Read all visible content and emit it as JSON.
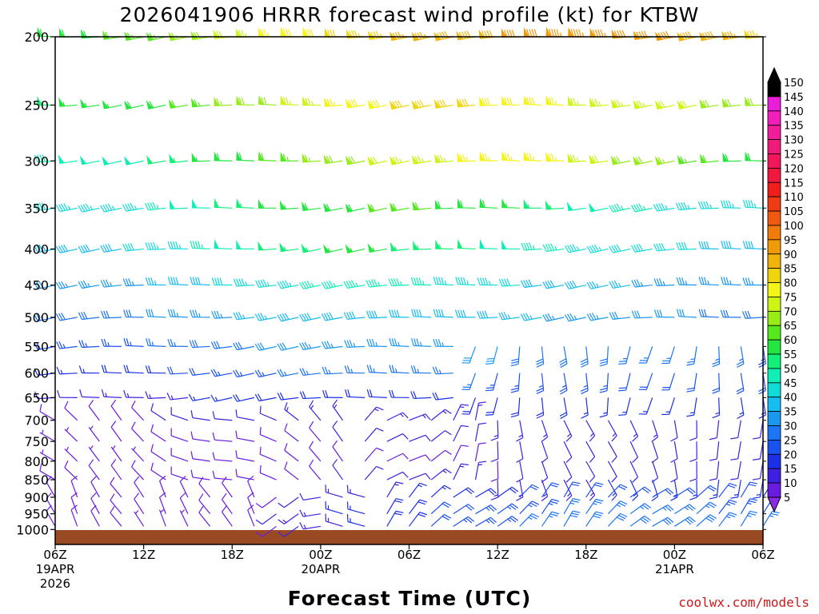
{
  "chart_data": {
    "type": "wind_barb_profile",
    "title": "2026041906 HRRR forecast wind profile (kt) for KTBW",
    "xlabel": "Forecast Time (UTC)",
    "ylabel": "",
    "x_ticks": [
      {
        "lines": [
          "06Z",
          "19APR",
          "2026"
        ]
      },
      {
        "lines": [
          "12Z"
        ]
      },
      {
        "lines": [
          "18Z"
        ]
      },
      {
        "lines": [
          "00Z",
          "20APR"
        ]
      },
      {
        "lines": [
          "06Z"
        ]
      },
      {
        "lines": [
          "12Z"
        ]
      },
      {
        "lines": [
          "18Z"
        ]
      },
      {
        "lines": [
          "00Z",
          "21APR"
        ]
      },
      {
        "lines": [
          "06Z"
        ]
      }
    ],
    "x_range_hours": [
      0,
      48
    ],
    "y_levels": [
      200,
      250,
      300,
      350,
      400,
      450,
      500,
      550,
      600,
      650,
      700,
      750,
      800,
      850,
      900,
      950,
      1000
    ],
    "y_scale": "log-pressure",
    "y_range": [
      200,
      1050
    ],
    "colorbar": {
      "levels": [
        5,
        10,
        15,
        20,
        25,
        30,
        35,
        40,
        45,
        50,
        55,
        60,
        65,
        70,
        75,
        80,
        85,
        90,
        95,
        100,
        105,
        110,
        115,
        120,
        125,
        130,
        135,
        140,
        145,
        150
      ],
      "colors": [
        "#8a2be2",
        "#6a1be0",
        "#4020e0",
        "#1a2fe6",
        "#1a52f0",
        "#1c75f2",
        "#1a98f0",
        "#17bcf0",
        "#12dcd8",
        "#10eeb8",
        "#12f07a",
        "#25e640",
        "#55e81c",
        "#98ec18",
        "#cef416",
        "#f4f416",
        "#f0d40e",
        "#f0b40a",
        "#f09a0a",
        "#f07a0a",
        "#f05a10",
        "#f03c14",
        "#f01e1a",
        "#f0183c",
        "#f0185a",
        "#f01a7a",
        "#f01c9a",
        "#f01eba",
        "#e81ed8",
        "#000000"
      ]
    },
    "wind_kt_by_level": {
      "200": [
        60,
        60,
        63,
        67,
        72,
        76,
        80,
        84,
        86,
        88,
        90,
        92,
        93,
        92,
        91,
        88,
        85
      ],
      "250": [
        55,
        56,
        58,
        62,
        66,
        70,
        75,
        79,
        81,
        82,
        80,
        78,
        75,
        74,
        72,
        70,
        68
      ],
      "300": [
        47,
        48,
        50,
        54,
        58,
        62,
        66,
        70,
        73,
        75,
        77,
        77,
        74,
        70,
        66,
        62,
        58
      ],
      "350": [
        42,
        43,
        45,
        48,
        52,
        56,
        58,
        60,
        61,
        60,
        58,
        55,
        50,
        47,
        45,
        44,
        43
      ],
      "400": [
        37,
        38,
        41,
        44,
        48,
        52,
        55,
        56,
        55,
        53,
        50,
        47,
        44,
        42,
        41,
        40,
        39
      ],
      "450": [
        32,
        33,
        35,
        38,
        41,
        44,
        46,
        47,
        47,
        45,
        43,
        40,
        38,
        36,
        34,
        33,
        33
      ],
      "500": [
        27,
        28,
        30,
        33,
        35,
        37,
        39,
        40,
        40,
        39,
        38,
        36,
        34,
        32,
        31,
        30,
        29
      ],
      "550": [
        22,
        23,
        25,
        27,
        29,
        31,
        33,
        34,
        34,
        33,
        31,
        29,
        28,
        27,
        26,
        26,
        25
      ],
      "600": [
        16,
        17,
        19,
        21,
        23,
        25,
        26,
        27,
        27,
        26,
        25,
        24,
        23,
        22,
        22,
        21,
        21
      ],
      "650": [
        11,
        12,
        13,
        15,
        17,
        18,
        19,
        20,
        20,
        19,
        18,
        18,
        17,
        17,
        16,
        16,
        16
      ],
      "700": [
        8,
        9,
        10,
        11,
        12,
        12,
        13,
        14,
        14,
        14,
        13,
        13,
        13,
        13,
        12,
        12,
        12
      ],
      "750": [
        7,
        7,
        8,
        9,
        9,
        10,
        10,
        11,
        11,
        11,
        11,
        11,
        11,
        11,
        11,
        11,
        11
      ],
      "800": [
        7,
        7,
        7,
        8,
        8,
        9,
        9,
        10,
        10,
        10,
        10,
        11,
        11,
        11,
        11,
        12,
        12
      ],
      "850": [
        8,
        8,
        8,
        8,
        8,
        9,
        10,
        11,
        12,
        13,
        14,
        15,
        15,
        16,
        16,
        16,
        16
      ],
      "900": [
        9,
        9,
        8,
        8,
        9,
        10,
        12,
        14,
        16,
        18,
        20,
        21,
        22,
        22,
        22,
        21,
        20
      ],
      "950": [
        9,
        9,
        8,
        8,
        9,
        11,
        14,
        17,
        20,
        22,
        24,
        25,
        26,
        26,
        26,
        25,
        24
      ],
      "1000": [
        8,
        8,
        7,
        7,
        8,
        10,
        13,
        17,
        20,
        23,
        25,
        27,
        28,
        28,
        28,
        27,
        26
      ]
    },
    "surface_color": "#9a4a22",
    "grid": false,
    "legend": "colorbar-right"
  },
  "credit": "coolwx.com/models"
}
